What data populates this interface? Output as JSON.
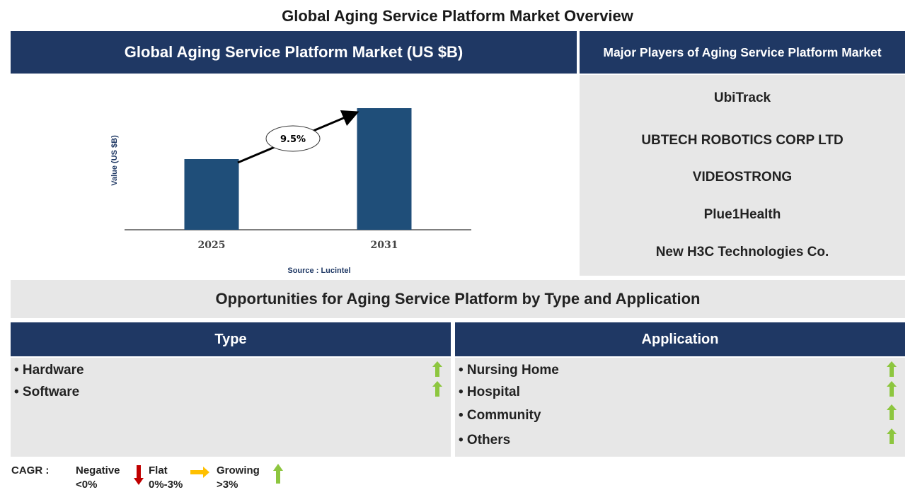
{
  "title": "Global Aging Service Platform Market Overview",
  "chart_panel": {
    "header": "Global Aging Service Platform Market (US $B)",
    "source": "Source : Lucintel"
  },
  "chart_data": {
    "type": "bar",
    "title": "Global Aging Service Platform Market (US $B)",
    "ylabel": "Value (US $B)",
    "xlabel": "",
    "categories": [
      "2025",
      "2031"
    ],
    "values": [
      1.0,
      1.72
    ],
    "bar_color": "#1f4e79",
    "annotation": "9.5%",
    "grid": false
  },
  "players": {
    "header": "Major Players of Aging Service Platform Market",
    "items": [
      "UbiTrack",
      "UBTECH ROBOTICS CORP LTD",
      "VIDEOSTRONG",
      "Plue1Health",
      "New H3C Technologies Co."
    ]
  },
  "opportunities": {
    "title": "Opportunities for Aging Service Platform by Type and Application",
    "type": {
      "header": "Type",
      "items": [
        {
          "label": "• Hardware",
          "trend": "growing"
        },
        {
          "label": "• Software",
          "trend": "growing"
        }
      ]
    },
    "application": {
      "header": "Application",
      "items": [
        {
          "label": "• Nursing Home",
          "trend": "growing"
        },
        {
          "label": "• Hospital",
          "trend": "growing"
        },
        {
          "label": "• Community",
          "trend": "growing"
        },
        {
          "label": "• Others",
          "trend": "growing"
        }
      ]
    }
  },
  "legend": {
    "label": "CAGR :",
    "negative": "Negative",
    "negative_range": "<0%",
    "flat": "Flat",
    "flat_range": "0%-3%",
    "growing": "Growing",
    "growing_range": ">3%"
  },
  "colors": {
    "navy": "#1f3864",
    "bar": "#1f4e79",
    "grey": "#e7e7e7",
    "up": "#8dc63f",
    "down": "#c00000",
    "flat": "#ffc000"
  }
}
